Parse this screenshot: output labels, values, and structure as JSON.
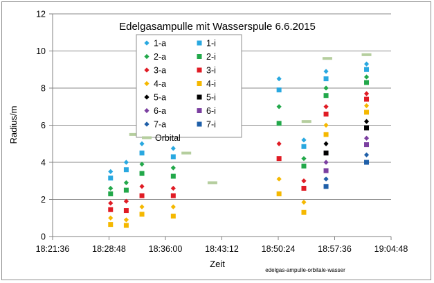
{
  "chart_data": {
    "type": "scatter",
    "title": "Edelgasampulle mit Wasserspule 6.6.2015",
    "xlabel": "Zeit",
    "ylabel": "Radius/m",
    "xlim": [
      "18:21:36",
      "19:04:48"
    ],
    "ylim": [
      0,
      12
    ],
    "xticks": [
      "18:21:36",
      "18:28:48",
      "18:36:00",
      "18:43:12",
      "18:50:24",
      "18:57:36",
      "19:04:48"
    ],
    "yticks": [
      "0",
      "2",
      "4",
      "6",
      "8",
      "10",
      "12"
    ],
    "grid": "horizontal",
    "legend_position": "top-center",
    "caption": "edelgas-ampulle-orbitale-wasser",
    "series": [
      {
        "name": "1-a",
        "marker": "diamond",
        "color": "#29a8e0",
        "points": [
          [
            "18:29:00",
            3.5
          ],
          [
            "18:31:00",
            4.0
          ],
          [
            "18:33:00",
            5.0
          ],
          [
            "18:37:00",
            4.75
          ],
          [
            "18:50:30",
            8.5
          ],
          [
            "18:53:40",
            5.2
          ],
          [
            "18:56:30",
            8.9
          ],
          [
            "19:01:40",
            9.3
          ]
        ]
      },
      {
        "name": "1-i",
        "marker": "square",
        "color": "#29a8e0",
        "points": [
          [
            "18:29:00",
            3.15
          ],
          [
            "18:31:00",
            3.6
          ],
          [
            "18:33:00",
            4.5
          ],
          [
            "18:37:00",
            4.3
          ],
          [
            "18:50:30",
            7.9
          ],
          [
            "18:53:40",
            4.85
          ],
          [
            "18:56:30",
            8.5
          ],
          [
            "19:01:40",
            9.0
          ]
        ]
      },
      {
        "name": "2-a",
        "marker": "diamond",
        "color": "#22a84a",
        "points": [
          [
            "18:29:00",
            2.6
          ],
          [
            "18:31:00",
            2.9
          ],
          [
            "18:33:00",
            3.9
          ],
          [
            "18:37:00",
            3.7
          ],
          [
            "18:50:30",
            7.0
          ],
          [
            "18:53:40",
            4.2
          ],
          [
            "18:56:30",
            8.0
          ],
          [
            "19:01:40",
            8.6
          ]
        ]
      },
      {
        "name": "2-i",
        "marker": "square",
        "color": "#22a84a",
        "points": [
          [
            "18:29:00",
            2.3
          ],
          [
            "18:31:00",
            2.5
          ],
          [
            "18:33:00",
            3.4
          ],
          [
            "18:37:00",
            3.25
          ],
          [
            "18:50:30",
            6.1
          ],
          [
            "18:53:40",
            3.8
          ],
          [
            "18:56:30",
            7.6
          ],
          [
            "19:01:40",
            8.3
          ]
        ]
      },
      {
        "name": "3-a",
        "marker": "diamond",
        "color": "#e01b24",
        "points": [
          [
            "18:29:00",
            1.8
          ],
          [
            "18:31:00",
            1.9
          ],
          [
            "18:33:00",
            2.7
          ],
          [
            "18:37:00",
            2.6
          ],
          [
            "18:50:30",
            5.0
          ],
          [
            "18:53:40",
            3.0
          ],
          [
            "18:56:30",
            7.0
          ],
          [
            "19:01:40",
            7.7
          ]
        ]
      },
      {
        "name": "3-i",
        "marker": "square",
        "color": "#e01b24",
        "points": [
          [
            "18:29:00",
            1.45
          ],
          [
            "18:31:00",
            1.4
          ],
          [
            "18:33:00",
            2.2
          ],
          [
            "18:37:00",
            2.2
          ],
          [
            "18:50:30",
            4.2
          ],
          [
            "18:53:40",
            2.6
          ],
          [
            "18:56:30",
            6.6
          ],
          [
            "19:01:40",
            7.4
          ]
        ]
      },
      {
        "name": "4-a",
        "marker": "diamond",
        "color": "#f5b800",
        "points": [
          [
            "18:29:00",
            1.0
          ],
          [
            "18:31:00",
            0.9
          ],
          [
            "18:33:00",
            1.6
          ],
          [
            "18:37:00",
            1.6
          ],
          [
            "18:50:30",
            3.1
          ],
          [
            "18:53:40",
            1.85
          ],
          [
            "18:56:30",
            6.0
          ],
          [
            "19:01:40",
            7.05
          ]
        ]
      },
      {
        "name": "4-i",
        "marker": "square",
        "color": "#f5b800",
        "points": [
          [
            "18:29:00",
            0.65
          ],
          [
            "18:31:00",
            0.6
          ],
          [
            "18:33:00",
            1.2
          ],
          [
            "18:37:00",
            1.1
          ],
          [
            "18:50:30",
            2.3
          ],
          [
            "18:53:40",
            1.3
          ],
          [
            "18:56:30",
            5.5
          ],
          [
            "19:01:40",
            6.7
          ]
        ]
      },
      {
        "name": "5-a",
        "marker": "diamond",
        "color": "#000000",
        "points": [
          [
            "18:56:30",
            5.0
          ],
          [
            "19:01:40",
            6.2
          ]
        ]
      },
      {
        "name": "5-i",
        "marker": "square",
        "color": "#000000",
        "points": [
          [
            "18:56:30",
            4.5
          ],
          [
            "19:01:40",
            5.85
          ]
        ]
      },
      {
        "name": "6-a",
        "marker": "diamond",
        "color": "#7b3fa0",
        "points": [
          [
            "18:56:30",
            4.0
          ],
          [
            "19:01:40",
            5.3
          ]
        ]
      },
      {
        "name": "6-i",
        "marker": "square",
        "color": "#7b3fa0",
        "points": [
          [
            "18:56:30",
            3.55
          ],
          [
            "19:01:40",
            4.95
          ]
        ]
      },
      {
        "name": "7-a",
        "marker": "diamond",
        "color": "#1f5fa8",
        "points": [
          [
            "18:56:30",
            3.1
          ],
          [
            "19:01:40",
            4.4
          ]
        ]
      },
      {
        "name": "7-i",
        "marker": "square",
        "color": "#1f5fa8",
        "points": [
          [
            "18:56:30",
            2.7
          ],
          [
            "19:01:40",
            4.0
          ]
        ]
      },
      {
        "name": "Orbital",
        "marker": "dash",
        "color": "#b5ce9e",
        "points": [
          [
            "18:32:00",
            5.5
          ],
          [
            "18:38:40",
            4.5
          ],
          [
            "18:42:00",
            2.9
          ],
          [
            "18:54:00",
            6.2
          ],
          [
            "18:56:40",
            9.6
          ],
          [
            "19:01:40",
            9.8
          ]
        ]
      }
    ]
  }
}
